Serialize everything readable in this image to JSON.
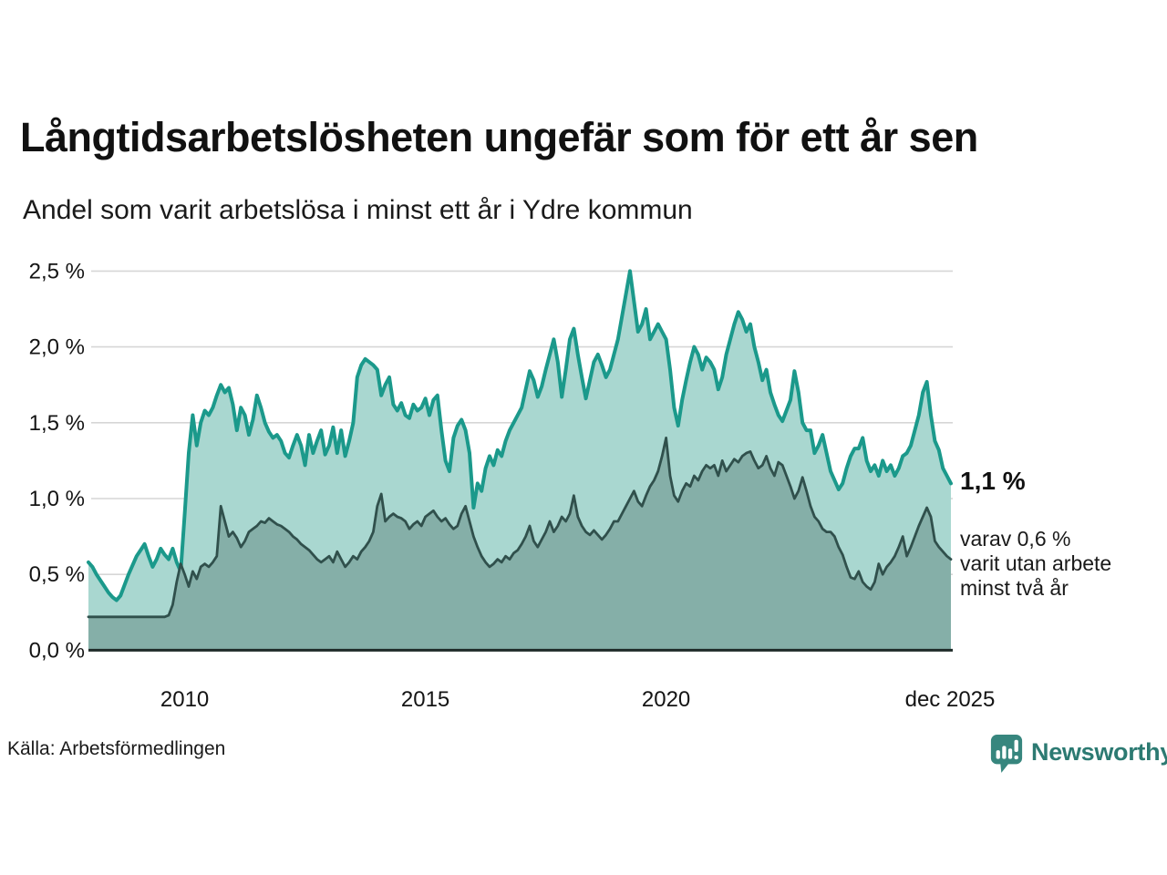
{
  "header": {
    "title": "Långtidsarbetslösheten ungefär som för ett år sen",
    "subtitle": "Andel som varit arbetslösa i minst ett år i Ydre kommun"
  },
  "chart_data": {
    "type": "area",
    "title": "Långtidsarbetslösheten ungefär som för ett år sen",
    "subtitle": "Andel som varit arbetslösa i minst ett år i Ydre kommun",
    "x_start_year": 2008,
    "x_months_per_point": 1,
    "x_tick_labels": [
      "2010",
      "2015",
      "2020",
      "dec 2025"
    ],
    "y_tick_labels": [
      "2,5 %",
      "2,0 %",
      "1,5 %",
      "1,0 %",
      "0,5 %",
      "0,0 %"
    ],
    "ylim": [
      0,
      2.5
    ],
    "grid": true,
    "colors": {
      "series1_line": "#1b998b",
      "series1_fill": "#a9d7d0",
      "series2_line": "#30504c",
      "series2_fill": "#85afa8",
      "gridline": "#d6d6d6",
      "axis": "#1f2b29",
      "brand_teal": "#2c7a72"
    },
    "series": [
      {
        "name": "arbetslösa minst ett år",
        "end_value_label": "1,1 %",
        "values": [
          0.58,
          0.55,
          0.5,
          0.46,
          0.42,
          0.38,
          0.35,
          0.33,
          0.36,
          0.43,
          0.5,
          0.56,
          0.62,
          0.66,
          0.7,
          0.62,
          0.55,
          0.6,
          0.67,
          0.63,
          0.6,
          0.67,
          0.58,
          0.52,
          0.9,
          1.3,
          1.55,
          1.35,
          1.5,
          1.58,
          1.55,
          1.6,
          1.68,
          1.75,
          1.7,
          1.73,
          1.62,
          1.45,
          1.6,
          1.55,
          1.42,
          1.52,
          1.68,
          1.6,
          1.5,
          1.44,
          1.4,
          1.42,
          1.38,
          1.3,
          1.27,
          1.35,
          1.42,
          1.35,
          1.22,
          1.42,
          1.3,
          1.38,
          1.45,
          1.29,
          1.35,
          1.47,
          1.3,
          1.45,
          1.28,
          1.38,
          1.5,
          1.8,
          1.88,
          1.92,
          1.9,
          1.88,
          1.85,
          1.68,
          1.75,
          1.8,
          1.62,
          1.58,
          1.63,
          1.55,
          1.53,
          1.62,
          1.58,
          1.6,
          1.66,
          1.55,
          1.65,
          1.68,
          1.45,
          1.25,
          1.18,
          1.4,
          1.48,
          1.52,
          1.45,
          1.3,
          0.94,
          1.1,
          1.05,
          1.2,
          1.28,
          1.22,
          1.32,
          1.28,
          1.38,
          1.45,
          1.5,
          1.55,
          1.6,
          1.72,
          1.84,
          1.78,
          1.67,
          1.74,
          1.85,
          1.95,
          2.05,
          1.9,
          1.67,
          1.85,
          2.05,
          2.12,
          1.95,
          1.8,
          1.66,
          1.78,
          1.9,
          1.95,
          1.88,
          1.8,
          1.85,
          1.95,
          2.05,
          2.2,
          2.35,
          2.5,
          2.3,
          2.1,
          2.15,
          2.25,
          2.05,
          2.1,
          2.15,
          2.1,
          2.05,
          1.85,
          1.6,
          1.48,
          1.65,
          1.78,
          1.9,
          2.0,
          1.95,
          1.85,
          1.93,
          1.9,
          1.85,
          1.72,
          1.8,
          1.95,
          2.05,
          2.15,
          2.23,
          2.18,
          2.1,
          2.15,
          2.0,
          1.9,
          1.78,
          1.85,
          1.7,
          1.62,
          1.55,
          1.51,
          1.58,
          1.65,
          1.84,
          1.7,
          1.5,
          1.45,
          1.45,
          1.3,
          1.35,
          1.42,
          1.3,
          1.18,
          1.12,
          1.06,
          1.1,
          1.2,
          1.28,
          1.33,
          1.33,
          1.4,
          1.25,
          1.18,
          1.22,
          1.15,
          1.25,
          1.18,
          1.22,
          1.15,
          1.2,
          1.28,
          1.3,
          1.35,
          1.45,
          1.55,
          1.7,
          1.77,
          1.55,
          1.38,
          1.32,
          1.2,
          1.15,
          1.1
        ]
      },
      {
        "name": "varav utan arbete minst två år",
        "end_value_label": "0,6 %",
        "values": [
          0.22,
          0.22,
          0.22,
          0.22,
          0.22,
          0.22,
          0.22,
          0.22,
          0.22,
          0.22,
          0.22,
          0.22,
          0.22,
          0.22,
          0.22,
          0.22,
          0.22,
          0.22,
          0.22,
          0.22,
          0.23,
          0.3,
          0.45,
          0.57,
          0.5,
          0.42,
          0.52,
          0.47,
          0.55,
          0.57,
          0.55,
          0.58,
          0.62,
          0.95,
          0.85,
          0.75,
          0.78,
          0.74,
          0.68,
          0.72,
          0.78,
          0.8,
          0.82,
          0.85,
          0.84,
          0.87,
          0.85,
          0.83,
          0.82,
          0.8,
          0.78,
          0.75,
          0.73,
          0.7,
          0.68,
          0.66,
          0.63,
          0.6,
          0.58,
          0.6,
          0.62,
          0.58,
          0.65,
          0.6,
          0.55,
          0.58,
          0.62,
          0.6,
          0.65,
          0.68,
          0.72,
          0.78,
          0.95,
          1.03,
          0.85,
          0.88,
          0.9,
          0.88,
          0.87,
          0.85,
          0.8,
          0.83,
          0.85,
          0.82,
          0.88,
          0.9,
          0.92,
          0.88,
          0.85,
          0.87,
          0.83,
          0.8,
          0.82,
          0.9,
          0.95,
          0.85,
          0.75,
          0.68,
          0.62,
          0.58,
          0.55,
          0.57,
          0.6,
          0.58,
          0.62,
          0.6,
          0.64,
          0.66,
          0.7,
          0.75,
          0.82,
          0.72,
          0.68,
          0.73,
          0.78,
          0.85,
          0.78,
          0.82,
          0.88,
          0.85,
          0.9,
          1.02,
          0.88,
          0.82,
          0.78,
          0.76,
          0.79,
          0.76,
          0.73,
          0.76,
          0.8,
          0.85,
          0.85,
          0.9,
          0.95,
          1.0,
          1.05,
          0.98,
          0.95,
          1.02,
          1.08,
          1.12,
          1.18,
          1.28,
          1.4,
          1.15,
          1.02,
          0.98,
          1.05,
          1.1,
          1.08,
          1.15,
          1.12,
          1.18,
          1.22,
          1.2,
          1.22,
          1.15,
          1.25,
          1.18,
          1.22,
          1.26,
          1.24,
          1.28,
          1.3,
          1.31,
          1.25,
          1.2,
          1.22,
          1.28,
          1.2,
          1.15,
          1.24,
          1.22,
          1.15,
          1.08,
          1.0,
          1.05,
          1.14,
          1.05,
          0.95,
          0.88,
          0.85,
          0.8,
          0.78,
          0.78,
          0.75,
          0.68,
          0.63,
          0.55,
          0.48,
          0.47,
          0.52,
          0.45,
          0.42,
          0.4,
          0.45,
          0.57,
          0.5,
          0.55,
          0.58,
          0.62,
          0.68,
          0.75,
          0.62,
          0.68,
          0.75,
          0.82,
          0.88,
          0.94,
          0.88,
          0.72,
          0.68,
          0.65,
          0.62,
          0.6
        ]
      }
    ],
    "annotations": {
      "value_label": "1,1 %",
      "sub_line1": "varav 0,6 %",
      "sub_line2": "varit utan arbete",
      "sub_line3": "minst två år"
    }
  },
  "footer": {
    "source": "Källa: Arbetsförmedlingen",
    "brand": "Newsworthy"
  }
}
